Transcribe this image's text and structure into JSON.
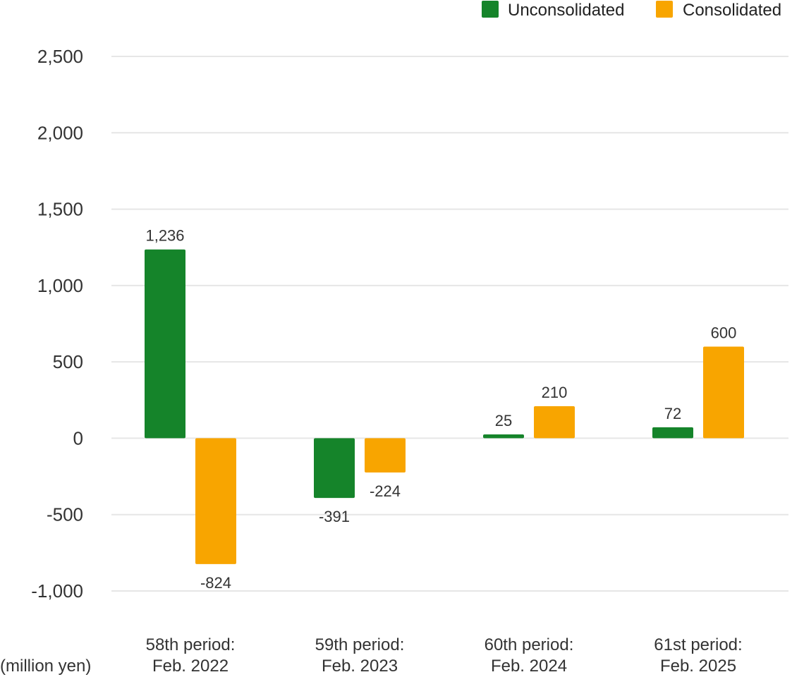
{
  "chart_data": {
    "type": "bar",
    "categories": [
      [
        "58th period:",
        "Feb. 2022"
      ],
      [
        "59th period:",
        "Feb. 2023"
      ],
      [
        "60th period:",
        "Feb. 2024"
      ],
      [
        "61st period:",
        "Feb. 2025"
      ]
    ],
    "series": [
      {
        "name": "Unconsolidated",
        "color": "#15842a",
        "values": [
          1236,
          -391,
          25,
          72
        ],
        "labels": [
          "1,236",
          "-391",
          "25",
          "72"
        ]
      },
      {
        "name": "Consolidated",
        "color": "#f8a500",
        "values": [
          -824,
          -224,
          210,
          600
        ],
        "labels": [
          "-824",
          "-224",
          "210",
          "600"
        ]
      }
    ],
    "ylim": [
      -1000,
      2500
    ],
    "yticks": [
      2500,
      2000,
      1500,
      1000,
      500,
      0,
      -500,
      -1000
    ],
    "ytick_labels": [
      "2,500",
      "2,000",
      "1,500",
      "1,000",
      "500",
      "0",
      "-500",
      "-1,000"
    ],
    "unit_label": "(million yen)",
    "grid": true,
    "legend_position": "top-right"
  }
}
